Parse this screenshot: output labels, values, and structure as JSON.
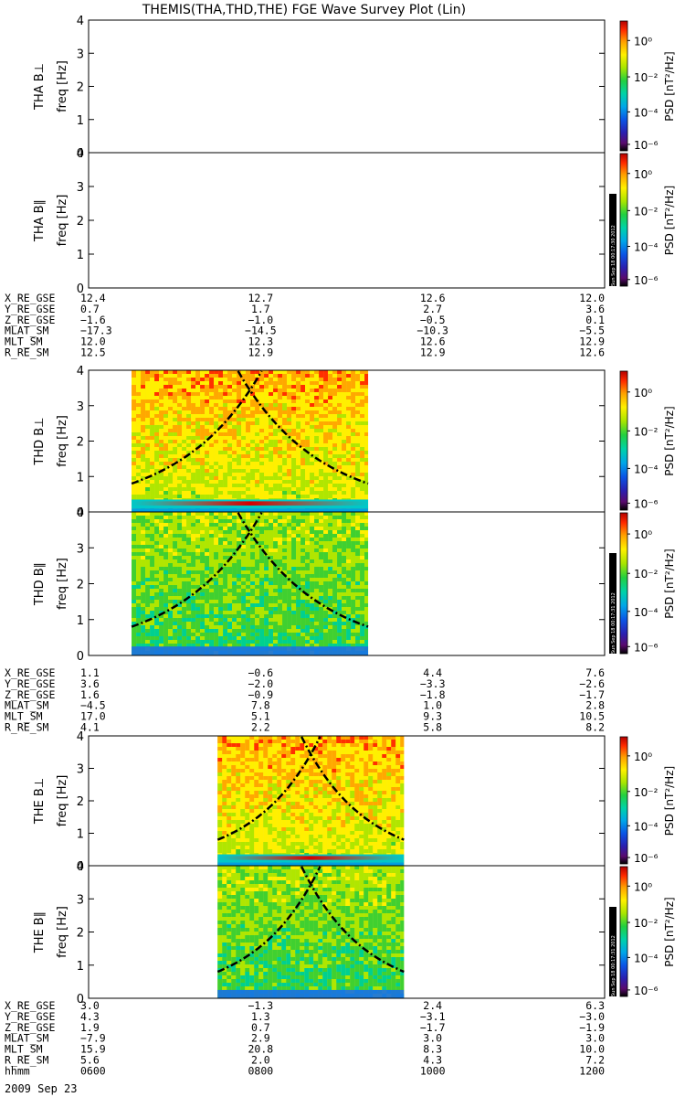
{
  "title": "THEMIS(THA,THD,THE) FGE Wave Survey Plot (Lin)",
  "colorbar": {
    "label": "PSD [nT²/Hz]",
    "ticks": [
      "10⁰",
      "10⁻²",
      "10⁻⁴",
      "10⁻⁶"
    ],
    "stamps": [
      "Sun Sep 18 00:17:30 2012",
      "Sun Sep 18 00:17:31 2012"
    ]
  },
  "chart_data": {
    "type": "heatmap",
    "freq_ticks": [
      "0",
      "1",
      "2",
      "3",
      "4"
    ],
    "ylim": [
      0,
      4
    ],
    "xlim_hhmm": [
      "0600",
      "1200"
    ],
    "panels": [
      {
        "probe": "THA",
        "component": "B⊥",
        "ylabel_probe": "THA B⊥",
        "ylabel_axis": "freq [Hz]",
        "data_window": null,
        "curves": false,
        "strong_low_band": false
      },
      {
        "probe": "THA",
        "component": "B∥",
        "ylabel_probe": "THA B∥",
        "ylabel_axis": "freq [Hz]",
        "data_window": null,
        "curves": false,
        "strong_low_band": false
      },
      {
        "probe": "THD",
        "component": "B⊥",
        "ylabel_probe": "THD B⊥",
        "ylabel_axis": "freq [Hz]",
        "data_window": [
          "0630",
          "0915"
        ],
        "curves": true,
        "strong_low_band": true
      },
      {
        "probe": "THD",
        "component": "B∥",
        "ylabel_probe": "THD B∥",
        "ylabel_axis": "freq [Hz]",
        "data_window": [
          "0630",
          "0915"
        ],
        "curves": true,
        "strong_low_band": false
      },
      {
        "probe": "THE",
        "component": "B⊥",
        "ylabel_probe": "THE B⊥",
        "ylabel_axis": "freq [Hz]",
        "data_window": [
          "0730",
          "0940"
        ],
        "curves": true,
        "strong_low_band": true
      },
      {
        "probe": "THE",
        "component": "B∥",
        "ylabel_probe": "THE B∥",
        "ylabel_axis": "freq [Hz]",
        "data_window": [
          "0730",
          "0940"
        ],
        "curves": true,
        "strong_low_band": false
      }
    ],
    "ephemeris": [
      {
        "probe": "THA",
        "rows": [
          {
            "label": "X_RE_GSE",
            "values": [
              "12.4",
              "12.7",
              "12.6",
              "12.0"
            ]
          },
          {
            "label": "Y_RE_GSE",
            "values": [
              "0.7",
              "1.7",
              "2.7",
              "3.6"
            ]
          },
          {
            "label": "Z_RE_GSE",
            "values": [
              "−1.6",
              "−1.0",
              "−0.5",
              "0.1"
            ]
          },
          {
            "label": "MLAT_SM",
            "values": [
              "−17.3",
              "−14.5",
              "−10.3",
              "−5.5"
            ]
          },
          {
            "label": "MLT_SM",
            "values": [
              "12.0",
              "12.3",
              "12.6",
              "12.9"
            ]
          },
          {
            "label": "R_RE_SM",
            "values": [
              "12.5",
              "12.9",
              "12.9",
              "12.6"
            ]
          }
        ]
      },
      {
        "probe": "THD",
        "rows": [
          {
            "label": "X_RE_GSE",
            "values": [
              "1.1",
              "−0.6",
              "4.4",
              "7.6"
            ]
          },
          {
            "label": "Y_RE_GSE",
            "values": [
              "3.6",
              "−2.0",
              "−3.3",
              "−2.6"
            ]
          },
          {
            "label": "Z_RE_GSE",
            "values": [
              "1.6",
              "−0.9",
              "−1.8",
              "−1.7"
            ]
          },
          {
            "label": "MLAT_SM",
            "values": [
              "−4.5",
              "7.8",
              "1.0",
              "2.8"
            ]
          },
          {
            "label": "MLT_SM",
            "values": [
              "17.0",
              "5.1",
              "9.3",
              "10.5"
            ]
          },
          {
            "label": "R_RE_SM",
            "values": [
              "4.1",
              "2.2",
              "5.8",
              "8.2"
            ]
          }
        ]
      },
      {
        "probe": "THE",
        "rows": [
          {
            "label": "X_RE_GSE",
            "values": [
              "3.0",
              "−1.3",
              "2.4",
              "6.3"
            ]
          },
          {
            "label": "Y_RE_GSE",
            "values": [
              "4.3",
              "1.3",
              "−3.1",
              "−3.0"
            ]
          },
          {
            "label": "Z_RE_GSE",
            "values": [
              "1.9",
              "0.7",
              "−1.7",
              "−1.9"
            ]
          },
          {
            "label": "MLAT_SM",
            "values": [
              "−7.9",
              "2.9",
              "3.0",
              "3.0"
            ]
          },
          {
            "label": "MLT_SM",
            "values": [
              "15.9",
              "20.8",
              "8.3",
              "10.0"
            ]
          },
          {
            "label": "R_RE_SM",
            "values": [
              "5.6",
              "2.0",
              "4.3",
              "7.2"
            ]
          },
          {
            "label": "hhmm",
            "values": [
              "0600",
              "0800",
              "1000",
              "1200"
            ]
          }
        ]
      }
    ],
    "date": "2009 Sep 23"
  }
}
